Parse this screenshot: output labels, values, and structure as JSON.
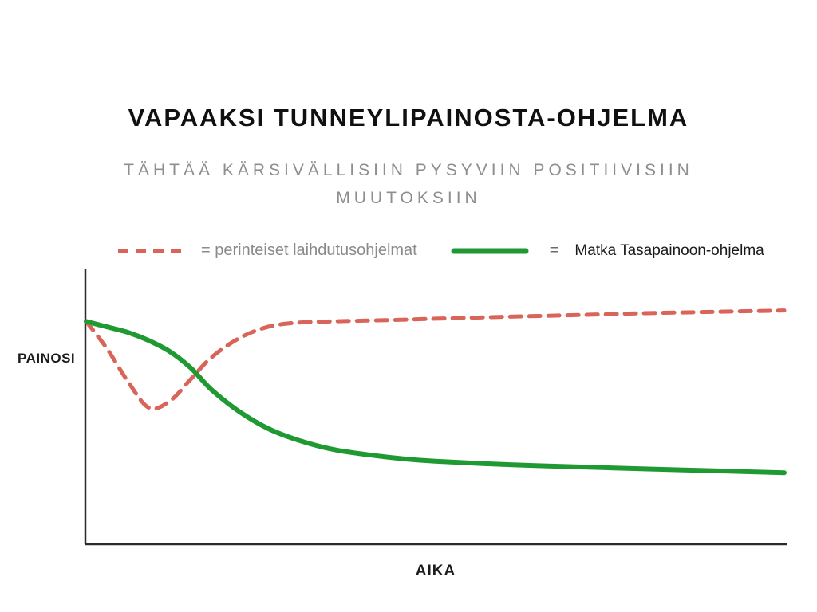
{
  "header": {
    "title": "VAPAAKSI TUNNEYLIPAINOSTA-OHJELMA",
    "subtitle": "TÄHTÄÄ KÄRSIVÄLLISIIN PYSYVIIN POSITIIVISIIN MUUTOKSIIN"
  },
  "legend": {
    "items": [
      {
        "label": "= perinteiset laihdutusohjelmat"
      },
      {
        "eq": "=",
        "label": "Matka Tasapainoon-ohjelma"
      }
    ]
  },
  "axes": {
    "y_label": "PAINOSI",
    "x_label": "AIKA"
  },
  "colors": {
    "traditional_line": "#d96459",
    "program_line": "#1f9a32",
    "axis": "#2b2b2b",
    "subtitle_gray": "#8e8e8e"
  },
  "chart_data": {
    "type": "line",
    "title": "VAPAAKSI TUNNEYLIPAINOSTA-OHJELMA",
    "xlabel": "AIKA",
    "ylabel": "PAINOSI",
    "xlim": [
      0,
      100
    ],
    "ylim": [
      0,
      100
    ],
    "grid": false,
    "legend_position": "top",
    "x": [
      0,
      3,
      6,
      9,
      12,
      15,
      18,
      22,
      26,
      30,
      35,
      40,
      45,
      50,
      60,
      70,
      80,
      90,
      100
    ],
    "series": [
      {
        "name": "perinteiset laihdutusohjelmat",
        "color": "#d96459",
        "style": "dashed",
        "line_width": 5,
        "values": [
          81,
          71,
          59,
          49.5,
          52,
          60,
          68,
          75,
          79,
          80.5,
          81,
          81.3,
          81.6,
          82,
          82.7,
          83.3,
          84,
          84.5,
          85
        ]
      },
      {
        "name": "Matka Tasapainoon-ohjelma",
        "color": "#1f9a32",
        "style": "solid",
        "line_width": 6,
        "values": [
          81,
          79,
          77,
          74,
          70,
          64,
          56,
          48,
          42,
          38,
          34.5,
          32.5,
          31,
          30,
          28.8,
          28,
          27.2,
          26.5,
          25.8
        ]
      }
    ]
  }
}
